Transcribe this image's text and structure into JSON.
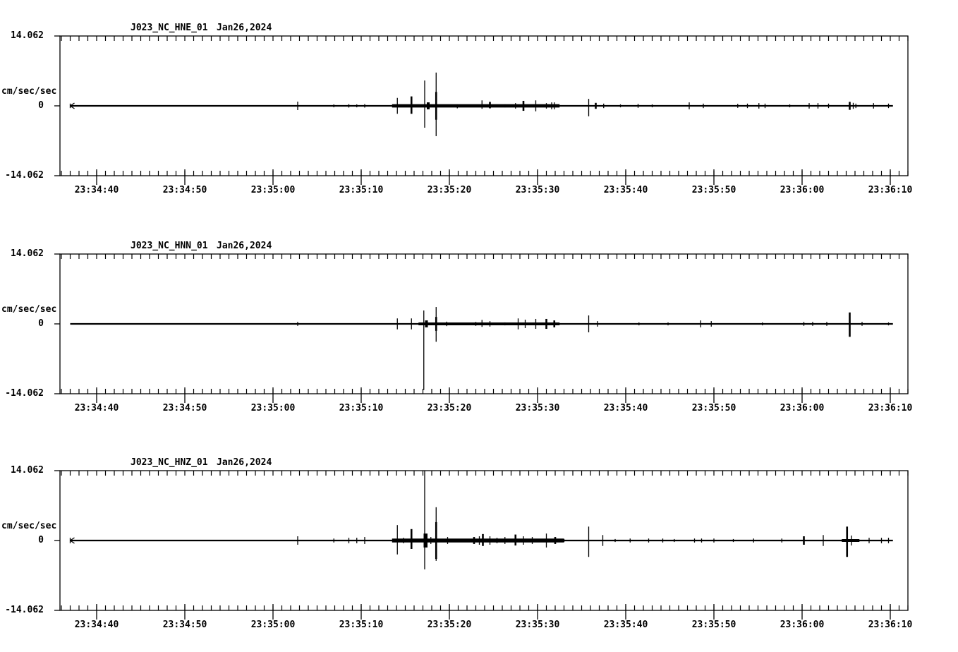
{
  "page": {
    "background_color": "#ffffff",
    "trace_color": "#000000",
    "axis_color": "#000000"
  },
  "chart_data": [
    {
      "type": "line",
      "station": "J023_NC_HNE_01",
      "date": "Jan26,2024",
      "y_axis": {
        "max_label": "14.062",
        "zero_label": "0",
        "min_label": "-14.062",
        "units": "cm/sec/sec",
        "ylim": [
          -14.062,
          14.062
        ]
      },
      "x_axis": {
        "major_labels": [
          "23:34:40",
          "23:34:50",
          "23:35:00",
          "23:35:10",
          "23:35:20",
          "23:35:30",
          "23:35:40",
          "23:35:50",
          "23:36:00",
          "23:36:10"
        ],
        "major_interval_sec": 10,
        "minor_interval_sec": 1
      },
      "t_reference": "seconds relative to 23:34:40",
      "spike_format": [
        "t_sec",
        "amp_up_cm_s2",
        "amp_down_cm_s2",
        "width_class"
      ],
      "trace": {
        "t0_sec": -3.0,
        "t1_sec": 90.3,
        "baseline_value": 0,
        "start_marker": true,
        "noise_bands": [
          [
            33.5,
            52.5,
            0.2
          ]
        ],
        "spikes": [
          [
            -3.0,
            0.45,
            0.45
          ],
          [
            22.8,
            0.85,
            0.85
          ],
          [
            26.9,
            0.3,
            0.3
          ],
          [
            28.6,
            0.35,
            0.35
          ],
          [
            29.5,
            0.3,
            0.3
          ],
          [
            30.4,
            0.35,
            0.35
          ],
          [
            34.1,
            1.6,
            1.6
          ],
          [
            35.7,
            1.9,
            1.6,
            2
          ],
          [
            37.2,
            5.1,
            4.4
          ],
          [
            37.6,
            0.7,
            0.7,
            3
          ],
          [
            38.5,
            6.7,
            6.1
          ],
          [
            38.5,
            2.8,
            2.8,
            2
          ],
          [
            40.9,
            0.3,
            0.5
          ],
          [
            43.7,
            1.1,
            0.6
          ],
          [
            44.6,
            0.8,
            0.5,
            2
          ],
          [
            46.3,
            0.3,
            0.3
          ],
          [
            47.5,
            0.55,
            0.55
          ],
          [
            48.4,
            1.0,
            1.0,
            2
          ],
          [
            49.8,
            1.1,
            1.1
          ],
          [
            51.0,
            0.55,
            0.55
          ],
          [
            51.6,
            0.7,
            0.7
          ],
          [
            51.9,
            0.7,
            0.7
          ],
          [
            55.8,
            1.4,
            2.1
          ],
          [
            56.6,
            0.6,
            0.6,
            2
          ],
          [
            57.5,
            0.45,
            0.45
          ],
          [
            59.4,
            0.3,
            0.3
          ],
          [
            61.4,
            0.4,
            0.4
          ],
          [
            63.0,
            0.3,
            0.3
          ],
          [
            67.2,
            0.7,
            0.7
          ],
          [
            68.8,
            0.45,
            0.45
          ],
          [
            72.7,
            0.4,
            0.4
          ],
          [
            73.8,
            0.45,
            0.45
          ],
          [
            75.1,
            0.55,
            0.55
          ],
          [
            75.8,
            0.45,
            0.45
          ],
          [
            78.6,
            0.3,
            0.3
          ],
          [
            80.8,
            0.55,
            0.55
          ],
          [
            81.8,
            0.55,
            0.55
          ],
          [
            83.0,
            0.45,
            0.45
          ],
          [
            85.4,
            0.8,
            0.8,
            2
          ],
          [
            85.8,
            0.6,
            0.6
          ],
          [
            86.1,
            0.45,
            0.45
          ],
          [
            88.1,
            0.55,
            0.55
          ],
          [
            89.8,
            0.45,
            0.45
          ]
        ]
      }
    },
    {
      "type": "line",
      "station": "J023_NC_HNN_01",
      "date": "Jan26,2024",
      "y_axis": {
        "max_label": "14.062",
        "zero_label": "0",
        "min_label": "-14.062",
        "units": "cm/sec/sec",
        "ylim": [
          -14.062,
          14.062
        ]
      },
      "x_axis": {
        "major_labels": [
          "23:34:40",
          "23:34:50",
          "23:35:00",
          "23:35:10",
          "23:35:20",
          "23:35:30",
          "23:35:40",
          "23:35:50",
          "23:36:00",
          "23:36:10"
        ],
        "major_interval_sec": 10,
        "minor_interval_sec": 1
      },
      "t_reference": "seconds relative to 23:34:40",
      "spike_format": [
        "t_sec",
        "amp_up_cm_s2",
        "amp_down_cm_s2",
        "width_class"
      ],
      "trace": {
        "t0_sec": -3.0,
        "t1_sec": 90.3,
        "baseline_value": 0,
        "start_marker": false,
        "noise_bands": [
          [
            36.5,
            52.5,
            0.15
          ]
        ],
        "spikes": [
          [
            22.8,
            0.4,
            0.4
          ],
          [
            34.1,
            1.1,
            1.1
          ],
          [
            35.7,
            1.1,
            1.1
          ],
          [
            37.1,
            2.7,
            13.3
          ],
          [
            37.4,
            0.7,
            0.7,
            3
          ],
          [
            38.5,
            3.4,
            3.6
          ],
          [
            38.5,
            1.4,
            1.4,
            2
          ],
          [
            39.7,
            0.45,
            0.45
          ],
          [
            43.0,
            0.4,
            0.4
          ],
          [
            43.7,
            0.8,
            0.6
          ],
          [
            44.6,
            0.55,
            0.55
          ],
          [
            46.3,
            0.3,
            0.3
          ],
          [
            47.8,
            1.1,
            1.1
          ],
          [
            48.6,
            0.85,
            0.85
          ],
          [
            49.8,
            1.0,
            1.0
          ],
          [
            51.0,
            1.0,
            1.0,
            2
          ],
          [
            51.9,
            0.7,
            0.7,
            2
          ],
          [
            55.8,
            1.7,
            1.7
          ],
          [
            56.8,
            0.55,
            0.55
          ],
          [
            61.5,
            0.3,
            0.3
          ],
          [
            64.8,
            0.3,
            0.3
          ],
          [
            68.5,
            0.7,
            0.7
          ],
          [
            69.7,
            0.55,
            0.55
          ],
          [
            75.5,
            0.3,
            0.3
          ],
          [
            80.2,
            0.4,
            0.4
          ],
          [
            81.2,
            0.4,
            0.4
          ],
          [
            82.8,
            0.4,
            0.4
          ],
          [
            85.4,
            2.3,
            2.6,
            2
          ],
          [
            86.8,
            0.4,
            0.4
          ],
          [
            89.8,
            0.3,
            0.3
          ]
        ]
      }
    },
    {
      "type": "line",
      "station": "J023_NC_HNZ_01",
      "date": "Jan26,2024",
      "y_axis": {
        "max_label": "14.062",
        "zero_label": "0",
        "min_label": "-14.062",
        "units": "cm/sec/sec",
        "ylim": [
          -14.062,
          14.062
        ]
      },
      "x_axis": {
        "major_labels": [
          "23:34:40",
          "23:34:50",
          "23:35:00",
          "23:35:10",
          "23:35:20",
          "23:35:30",
          "23:35:40",
          "23:35:50",
          "23:36:00",
          "23:36:10"
        ],
        "major_interval_sec": 10,
        "minor_interval_sec": 1
      },
      "t_reference": "seconds relative to 23:34:40",
      "spike_format": [
        "t_sec",
        "amp_up_cm_s2",
        "amp_down_cm_s2",
        "width_class"
      ],
      "trace": {
        "t0_sec": -3.0,
        "t1_sec": 90.3,
        "baseline_value": 0,
        "start_marker": true,
        "noise_bands": [
          [
            33.5,
            53.0,
            0.25
          ],
          [
            84.5,
            86.5,
            0.15
          ]
        ],
        "spikes": [
          [
            -3.0,
            0.55,
            0.55
          ],
          [
            22.8,
            0.85,
            0.85
          ],
          [
            26.9,
            0.4,
            0.4
          ],
          [
            28.6,
            0.55,
            0.55
          ],
          [
            29.5,
            0.55,
            0.55
          ],
          [
            30.4,
            0.7,
            0.7
          ],
          [
            34.1,
            3.1,
            2.8
          ],
          [
            34.8,
            0.55,
            0.55
          ],
          [
            35.7,
            2.3,
            1.7,
            2
          ],
          [
            37.2,
            14.06,
            5.8
          ],
          [
            37.3,
            1.4,
            1.4,
            4
          ],
          [
            37.9,
            0.7,
            0.7
          ],
          [
            38.5,
            6.7,
            4.1
          ],
          [
            38.5,
            3.7,
            3.7,
            2
          ],
          [
            39.8,
            0.7,
            0.7
          ],
          [
            42.8,
            0.7,
            0.7,
            2
          ],
          [
            43.4,
            0.85,
            0.85
          ],
          [
            43.8,
            1.3,
            1.1,
            2
          ],
          [
            44.6,
            0.85,
            0.85
          ],
          [
            45.4,
            0.55,
            0.55
          ],
          [
            46.3,
            0.7,
            0.7
          ],
          [
            47.5,
            1.2,
            1.0,
            2
          ],
          [
            48.4,
            0.85,
            0.85
          ],
          [
            49.4,
            0.7,
            0.7
          ],
          [
            51.0,
            1.4,
            1.4
          ],
          [
            52.0,
            0.7,
            0.7,
            2
          ],
          [
            53.0,
            0.3,
            0.3
          ],
          [
            55.8,
            2.8,
            3.3
          ],
          [
            57.4,
            1.1,
            1.1
          ],
          [
            58.8,
            0.3,
            0.3
          ],
          [
            60.5,
            0.4,
            0.4
          ],
          [
            62.6,
            0.4,
            0.4
          ],
          [
            64.2,
            0.4,
            0.4
          ],
          [
            65.5,
            0.3,
            0.3
          ],
          [
            67.8,
            0.4,
            0.4
          ],
          [
            68.6,
            0.4,
            0.4
          ],
          [
            70.0,
            0.4,
            0.4
          ],
          [
            72.2,
            0.3,
            0.3
          ],
          [
            74.5,
            0.4,
            0.4
          ],
          [
            77.7,
            0.4,
            0.4
          ],
          [
            80.2,
            0.85,
            0.85,
            2
          ],
          [
            82.4,
            1.1,
            1.1
          ],
          [
            85.1,
            2.8,
            3.3,
            2
          ],
          [
            85.6,
            1.0,
            1.0
          ],
          [
            87.6,
            0.55,
            0.55
          ],
          [
            89.0,
            0.55,
            0.55
          ],
          [
            89.8,
            0.55,
            0.55
          ]
        ]
      }
    }
  ]
}
